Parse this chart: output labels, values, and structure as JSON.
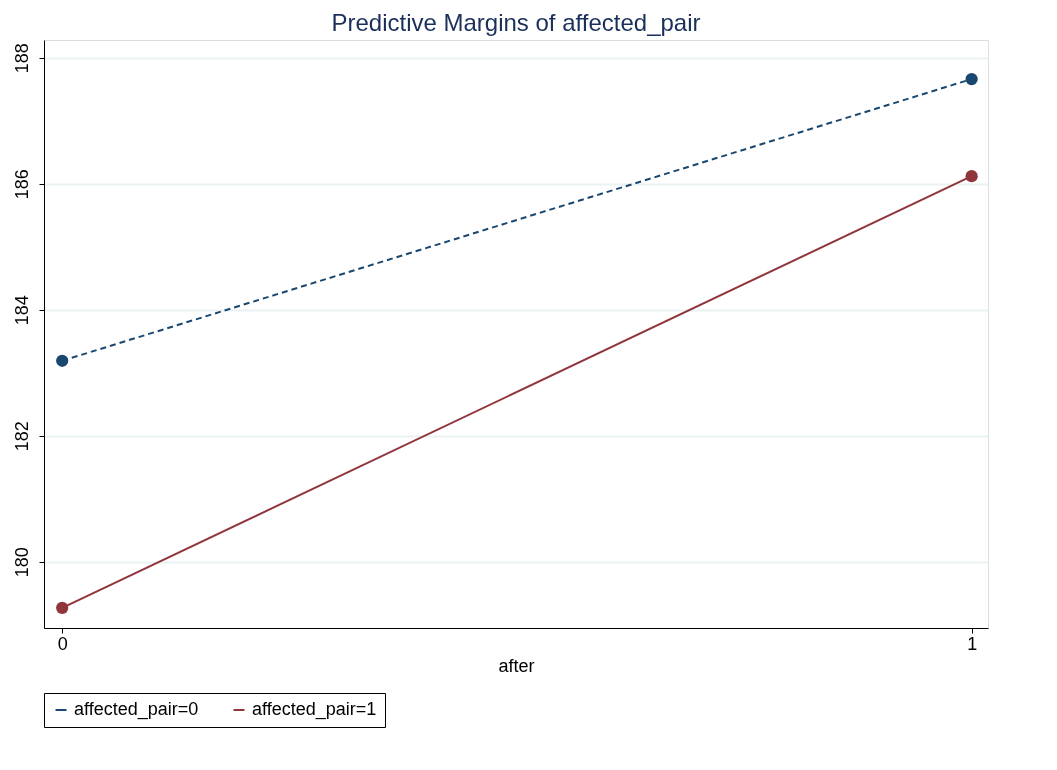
{
  "chart_data": {
    "type": "line",
    "title": "Predictive Margins of affected_pair",
    "xlabel": "after",
    "x": [
      0,
      1
    ],
    "series": [
      {
        "name": "affected_pair=0",
        "color": "#1a476f",
        "values": [
          183.19,
          187.66
        ],
        "line_style": "dashed"
      },
      {
        "name": "affected_pair=1",
        "color": "#90353b",
        "values": [
          179.27,
          186.12
        ],
        "line_style": "solid"
      }
    ],
    "xlim": [
      -0.02,
      1.018
    ],
    "xticks": [
      0,
      1
    ],
    "ylim": [
      178.95,
      188.28
    ],
    "yticks": [
      180,
      182,
      184,
      186,
      188
    ],
    "grid": "y",
    "legend": "bottom",
    "marker": "circle"
  }
}
